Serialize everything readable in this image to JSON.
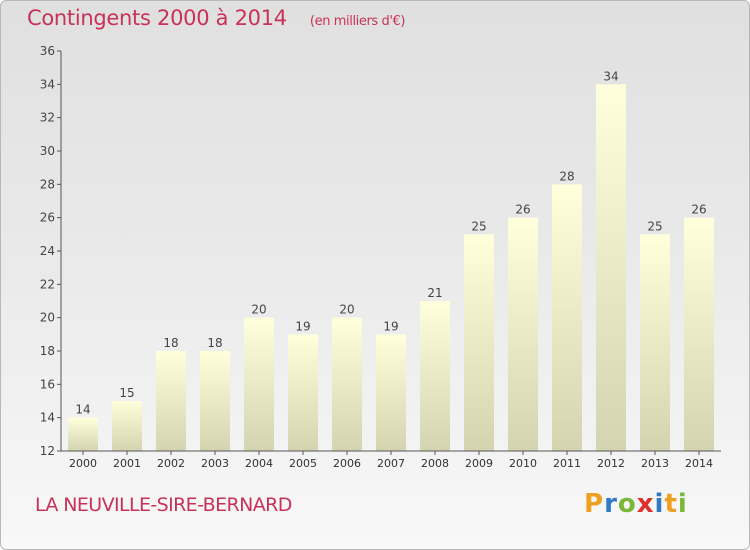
{
  "header": {
    "title": "Contingents 2000 à 2014",
    "subtitle": "(en milliers d'€)"
  },
  "footer": {
    "commune": "LA NEUVILLE-SIRE-BERNARD",
    "logo": "Proxiti"
  },
  "chart_data": {
    "type": "bar",
    "categories": [
      "2000",
      "2001",
      "2002",
      "2003",
      "2004",
      "2005",
      "2006",
      "2007",
      "2008",
      "2009",
      "2010",
      "2011",
      "2012",
      "2013",
      "2014"
    ],
    "values": [
      14,
      15,
      18,
      18,
      20,
      19,
      20,
      19,
      21,
      25,
      26,
      28,
      34,
      25,
      26
    ],
    "ylim": [
      12,
      36
    ],
    "yticks": [
      12,
      14,
      16,
      18,
      20,
      22,
      24,
      26,
      28,
      30,
      32,
      34,
      36
    ],
    "grid": false,
    "data_labels": true,
    "colors": {
      "bar_top": "#ffffdc",
      "bar_bottom": "#d6d6b2",
      "label": "#444444",
      "axis": "#555555"
    }
  }
}
